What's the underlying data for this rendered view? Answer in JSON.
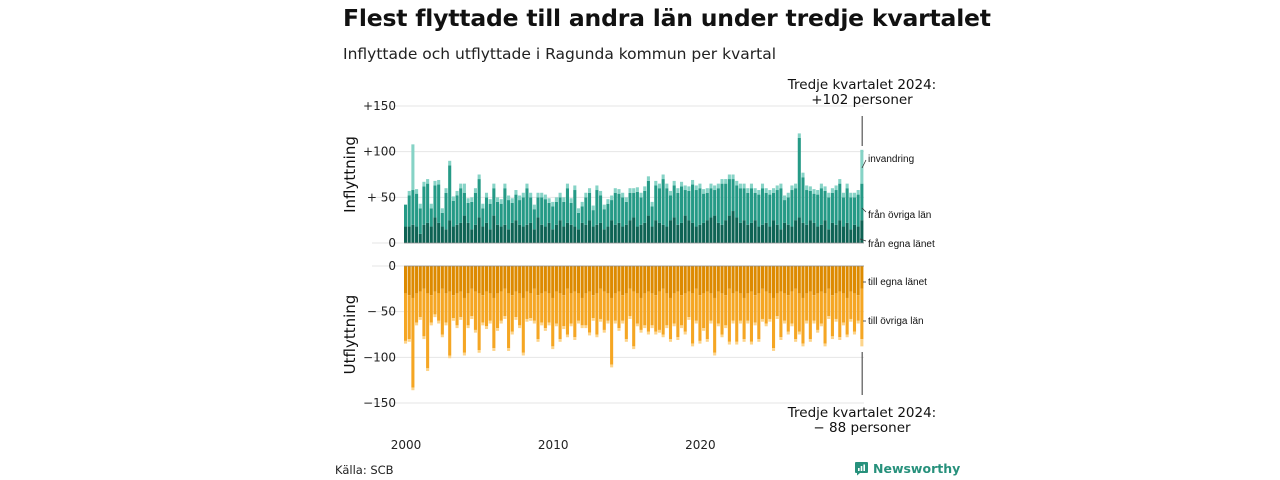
{
  "title": "Flest flyttade till andra län under tredje kvartalet",
  "subtitle": "Inflyttade och utflyttade i Ragunda kommun per kvartal",
  "source": "Källa: SCB",
  "brand": "Newsworthy",
  "colors": {
    "in_egna": "#0e6354",
    "in_ovriga": "#259a86",
    "in_invandring": "#86d3c6",
    "out_egna": "#dd8a00",
    "out_ovriga": "#f5a623",
    "out_utvandring": "#fdd48a",
    "grid": "#e6e6e6",
    "brand": "#27917c"
  },
  "chart_data": {
    "type": "bar",
    "stacked": true,
    "x_ticks": [
      "2000",
      "2010",
      "2020"
    ],
    "panels": [
      {
        "name": "inflyttning",
        "ylabel": "Inflyttning",
        "ylim": [
          0,
          150
        ],
        "y_ticks": [
          {
            "value": 0,
            "label": "0"
          },
          {
            "value": 50,
            "label": "+ 50"
          },
          {
            "value": 100,
            "label": "+100"
          },
          {
            "value": 150,
            "label": "+150"
          }
        ],
        "series": [
          {
            "name": "från egna länet",
            "values": [
              18,
              18,
              20,
              18,
              10,
              20,
              22,
              18,
              28,
              22,
              18,
              15,
              25,
              18,
              20,
              22,
              30,
              22,
              15,
              20,
              28,
              18,
              22,
              15,
              30,
              20,
              18,
              20,
              15,
              22,
              25,
              20,
              18,
              20,
              22,
              15,
              28,
              20,
              18,
              22,
              15,
              20,
              25,
              18,
              22,
              20,
              18,
              15,
              22,
              20,
              25,
              18,
              20,
              22,
              15,
              18,
              25,
              20,
              22,
              18,
              20,
              25,
              28,
              18,
              20,
              22,
              30,
              18,
              25,
              22,
              20,
              18,
              25,
              28,
              20,
              22,
              30,
              25,
              22,
              18,
              20,
              22,
              25,
              28,
              30,
              22,
              20,
              25,
              30,
              35,
              28,
              22,
              25,
              20,
              22,
              25,
              18,
              20,
              22,
              18,
              25,
              20,
              15,
              22,
              20,
              18,
              25,
              28,
              22,
              20,
              25,
              22,
              18,
              20,
              25,
              15,
              22,
              20,
              25,
              18,
              22,
              15,
              20,
              18,
              25
            ]
          },
          {
            "name": "från övriga län",
            "values": [
              24,
              34,
              38,
              36,
              28,
              42,
              43,
              20,
              35,
              42,
              15,
              40,
              60,
              28,
              32,
              38,
              25,
              22,
              30,
              35,
              42,
              20,
              28,
              28,
              30,
              25,
              25,
              40,
              32,
              22,
              28,
              27,
              32,
              40,
              28,
              22,
              22,
              30,
              30,
              22,
              25,
              25,
              25,
              27,
              38,
              24,
              40,
              18,
              18,
              30,
              30,
              18,
              38,
              30,
              22,
              25,
              22,
              35,
              32,
              32,
              25,
              30,
              27,
              38,
              30,
              35,
              38,
              22,
              38,
              38,
              50,
              42,
              27,
              35,
              35,
              40,
              28,
              32,
              42,
              40,
              40,
              32,
              30,
              32,
              28,
              38,
              45,
              40,
              40,
              35,
              35,
              38,
              35,
              35,
              38,
              30,
              35,
              40,
              33,
              35,
              30,
              38,
              45,
              25,
              30,
              40,
              35,
              87,
              50,
              38,
              32,
              32,
              35,
              40,
              32,
              35,
              33,
              38,
              40,
              32,
              38,
              35,
              30,
              35,
              40
            ]
          },
          {
            "name": "invandring",
            "values": [
              0,
              5,
              50,
              5,
              5,
              5,
              5,
              5,
              5,
              5,
              5,
              5,
              5,
              5,
              5,
              5,
              10,
              5,
              5,
              5,
              5,
              5,
              5,
              5,
              5,
              5,
              5,
              5,
              5,
              5,
              5,
              5,
              5,
              5,
              5,
              5,
              5,
              5,
              5,
              5,
              5,
              5,
              5,
              5,
              5,
              5,
              5,
              5,
              5,
              5,
              5,
              5,
              5,
              5,
              5,
              5,
              5,
              5,
              5,
              5,
              5,
              5,
              5,
              5,
              5,
              5,
              5,
              5,
              5,
              5,
              5,
              5,
              5,
              5,
              5,
              5,
              5,
              5,
              5,
              5,
              5,
              5,
              5,
              5,
              5,
              5,
              5,
              5,
              5,
              5,
              5,
              5,
              5,
              5,
              5,
              5,
              5,
              5,
              5,
              5,
              5,
              5,
              5,
              5,
              5,
              5,
              5,
              5,
              5,
              5,
              5,
              5,
              5,
              5,
              5,
              5,
              5,
              5,
              5,
              5,
              5,
              5,
              5,
              5,
              37
            ]
          }
        ]
      },
      {
        "name": "utflyttning",
        "ylabel": "Utflyttning",
        "ylim": [
          -150,
          0
        ],
        "y_ticks": [
          {
            "value": 0,
            "label": "0"
          },
          {
            "value": -50,
            "label": "− 50"
          },
          {
            "value": -100,
            "label": "−100"
          },
          {
            "value": -150,
            "label": "−150"
          }
        ],
        "series": [
          {
            "name": "till egna länet",
            "values": [
              -30,
              -32,
              -35,
              -30,
              -28,
              -25,
              -30,
              -32,
              -28,
              -30,
              -25,
              -30,
              -28,
              -32,
              -30,
              -28,
              -35,
              -30,
              -25,
              -28,
              -30,
              -32,
              -28,
              -30,
              -35,
              -30,
              -28,
              -25,
              -30,
              -32,
              -28,
              -30,
              -35,
              -28,
              -30,
              -25,
              -32,
              -30,
              -28,
              -30,
              -35,
              -28,
              -30,
              -32,
              -25,
              -30,
              -28,
              -30,
              -35,
              -30,
              -28,
              -32,
              -30,
              -25,
              -28,
              -30,
              -35,
              -30,
              -28,
              -32,
              -30,
              -25,
              -28,
              -30,
              -35,
              -30,
              -28,
              -30,
              -32,
              -28,
              -25,
              -30,
              -35,
              -30,
              -28,
              -32,
              -30,
              -28,
              -30,
              -25,
              -32,
              -30,
              -28,
              -30,
              -35,
              -28,
              -30,
              -32,
              -25,
              -30,
              -28,
              -30,
              -35,
              -30,
              -28,
              -32,
              -30,
              -25,
              -28,
              -30,
              -35,
              -30,
              -28,
              -30,
              -32,
              -28,
              -25,
              -30,
              -35,
              -30,
              -28,
              -32,
              -30,
              -28,
              -30,
              -25,
              -32,
              -30,
              -28,
              -30,
              -35,
              -28,
              -30,
              -32,
              -25
            ]
          },
          {
            "name": "till övriga län",
            "values": [
              -52,
              -48,
              -98,
              -32,
              -28,
              -52,
              -82,
              -30,
              -25,
              -30,
              -50,
              -32,
              -70,
              -25,
              -35,
              -28,
              -60,
              -35,
              -30,
              -42,
              -62,
              -30,
              -38,
              -30,
              -55,
              -38,
              -32,
              -30,
              -60,
              -40,
              -28,
              -35,
              -60,
              -30,
              -27,
              -35,
              -48,
              -32,
              -40,
              -32,
              -53,
              -35,
              -50,
              -34,
              -50,
              -33,
              -50,
              -30,
              -30,
              -35,
              -45,
              -25,
              -45,
              -33,
              -42,
              -30,
              -73,
              -30,
              -40,
              -28,
              -50,
              -30,
              -60,
              -33,
              -35,
              -35,
              -44,
              -35,
              -40,
              -42,
              -50,
              -35,
              -45,
              -33,
              -50,
              -33,
              -42,
              -28,
              -55,
              -35,
              -50,
              -38,
              -52,
              -30,
              -60,
              -35,
              -45,
              -33,
              -58,
              -30,
              -55,
              -30,
              -45,
              -30,
              -55,
              -30,
              -50,
              -33,
              -35,
              -28,
              -55,
              -25,
              -50,
              -30,
              -40,
              -35,
              -55,
              -42,
              -50,
              -30,
              -52,
              -28,
              -40,
              -35,
              -55,
              -30,
              -45,
              -28,
              -50,
              -32,
              -40,
              -30,
              -42,
              -28,
              -55
            ]
          },
          {
            "name": "utvandring",
            "values": [
              -3,
              -3,
              -3,
              -3,
              -3,
              -3,
              -3,
              -3,
              -3,
              -3,
              -3,
              -3,
              -3,
              -3,
              -3,
              -3,
              -3,
              -3,
              -3,
              -3,
              -3,
              -3,
              -3,
              -3,
              -3,
              -3,
              -3,
              -3,
              -3,
              -3,
              -3,
              -3,
              -3,
              -3,
              -3,
              -3,
              -3,
              -3,
              -3,
              -3,
              -3,
              -3,
              -3,
              -3,
              -3,
              -3,
              -3,
              -3,
              -3,
              -3,
              -3,
              -3,
              -3,
              -3,
              -3,
              -3,
              -3,
              -3,
              -3,
              -3,
              -3,
              -3,
              -3,
              -3,
              -3,
              -3,
              -3,
              -3,
              -3,
              -3,
              -3,
              -3,
              -3,
              -3,
              -3,
              -3,
              -3,
              -3,
              -3,
              -3,
              -3,
              -3,
              -3,
              -3,
              -3,
              -3,
              -3,
              -3,
              -3,
              -3,
              -3,
              -3,
              -3,
              -3,
              -3,
              -3,
              -3,
              -3,
              -3,
              -3,
              -3,
              -3,
              -3,
              -3,
              -3,
              -3,
              -3,
              -3,
              -3,
              -3,
              -3,
              -3,
              -3,
              -3,
              -3,
              -3,
              -3,
              -3,
              -3,
              -3,
              -3,
              -3,
              -3,
              -3,
              -8
            ]
          }
        ]
      }
    ],
    "series_labels_in": [
      "invandring",
      "från övriga län",
      "från egna länet"
    ],
    "series_labels_out": [
      "till egna länet",
      "till övriga län"
    ],
    "annotation_top": [
      "Tredje kvartalet 2024:",
      "+102 personer"
    ],
    "annotation_bottom": [
      "Tredje kvartalet 2024:",
      "− 88 personer"
    ]
  }
}
